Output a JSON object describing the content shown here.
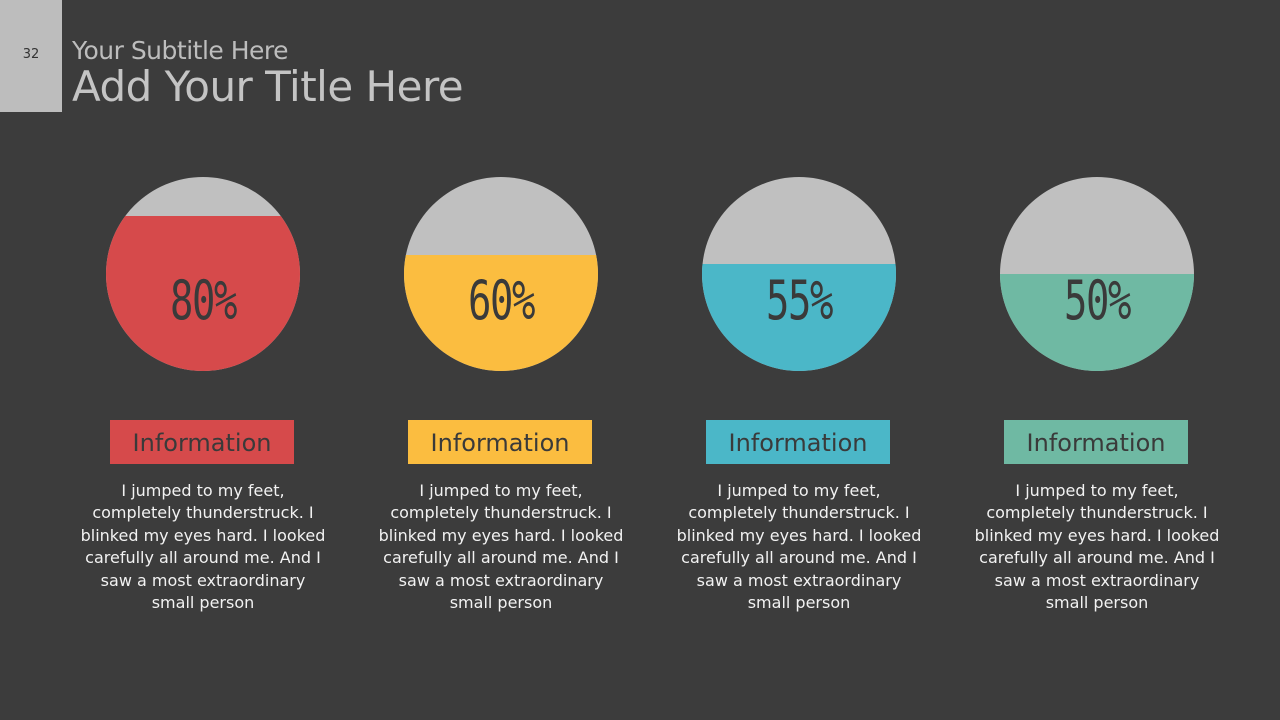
{
  "slide_number": "32",
  "subtitle": "Your Subtitle Here",
  "title": "Add Your Title Here",
  "items": [
    {
      "percent_label": "80%",
      "value": 0.8,
      "color": "#d64a4b",
      "label": "Information",
      "text": "I jumped to my feet, completely thunderstruck. I blinked my eyes hard. I looked carefully all around me. And I saw a most extraordinary small person"
    },
    {
      "percent_label": "60%",
      "value": 0.6,
      "color": "#fbbd40",
      "label": "Information",
      "text": "I jumped to my feet, completely thunderstruck. I blinked my eyes hard. I looked carefully all around me. And I saw a most extraordinary small person"
    },
    {
      "percent_label": "55%",
      "value": 0.55,
      "color": "#4bb7c8",
      "label": "Information",
      "text": "I jumped to my feet, completely thunderstruck. I blinked my eyes hard. I looked carefully all around me. And I saw a most extraordinary small person"
    },
    {
      "percent_label": "50%",
      "value": 0.5,
      "color": "#6fb9a3",
      "label": "Information",
      "text": "I jumped to my feet, completely thunderstruck. I blinked my eyes hard. I looked carefully all around me. And I saw a most extraordinary small person"
    }
  ]
}
